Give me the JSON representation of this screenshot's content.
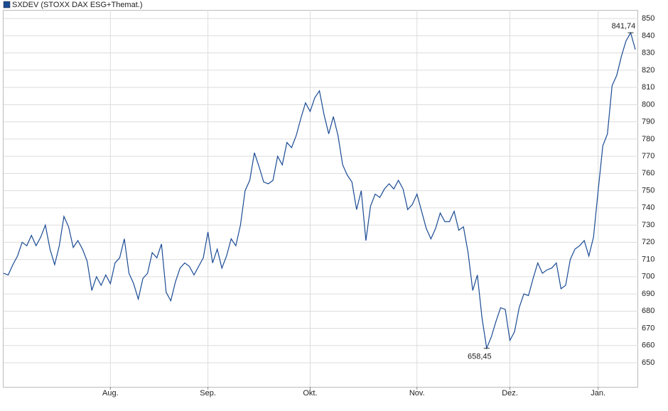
{
  "chart_data": {
    "type": "line",
    "categories": [
      null,
      null,
      null,
      null,
      null,
      null,
      null,
      null,
      null,
      null,
      null,
      null,
      null,
      null,
      null,
      null,
      null,
      null,
      null,
      null,
      null,
      null,
      null,
      "Aug.",
      null,
      null,
      null,
      null,
      null,
      null,
      null,
      null,
      null,
      null,
      null,
      null,
      null,
      null,
      null,
      null,
      null,
      null,
      null,
      null,
      "Sep.",
      null,
      null,
      null,
      null,
      null,
      null,
      null,
      null,
      null,
      null,
      null,
      null,
      null,
      null,
      null,
      null,
      null,
      null,
      null,
      null,
      null,
      "Okt.",
      null,
      null,
      null,
      null,
      null,
      null,
      null,
      null,
      null,
      null,
      null,
      null,
      null,
      null,
      null,
      null,
      null,
      null,
      null,
      null,
      null,
      null,
      "Nov.",
      null,
      null,
      null,
      null,
      null,
      null,
      null,
      null,
      null,
      null,
      null,
      null,
      null,
      null,
      null,
      null,
      null,
      null,
      null,
      "Dez.",
      null,
      null,
      null,
      null,
      null,
      null,
      null,
      null,
      null,
      null,
      null,
      null,
      null,
      null,
      null,
      null,
      null,
      null,
      "Jan.",
      null,
      null,
      null,
      null,
      null,
      null,
      null,
      null
    ],
    "series": [
      {
        "name": "SXDEV (STOXX DAX ESG+Themat.)",
        "color": "#1a4b94",
        "values": [
          702,
          701,
          707,
          712,
          720,
          718,
          724,
          718,
          723,
          730,
          716,
          707,
          718,
          735,
          729,
          717,
          721,
          716,
          709,
          692,
          700,
          695,
          701,
          696,
          708,
          711,
          722,
          702,
          696,
          687,
          699,
          702,
          714,
          711,
          719,
          691,
          686,
          697,
          705,
          708,
          706,
          701,
          706,
          711,
          726,
          708,
          716,
          705,
          712,
          722,
          718,
          730,
          750,
          756,
          772,
          764,
          755,
          754,
          756,
          770,
          765,
          778,
          775,
          782,
          792,
          801,
          796,
          804,
          808,
          794,
          783,
          793,
          782,
          765,
          759,
          755,
          739,
          750,
          721,
          741,
          748,
          746,
          751,
          754,
          751,
          756,
          751,
          739,
          742,
          748,
          738,
          728,
          722,
          728,
          737,
          732,
          732,
          738,
          727,
          729,
          714,
          692,
          701,
          676,
          658.45,
          665,
          674,
          682,
          681,
          663,
          668,
          682,
          690,
          689,
          699,
          708,
          702,
          704,
          705,
          708,
          693,
          695,
          710,
          716,
          718,
          721,
          712,
          723,
          750,
          776,
          783,
          811,
          817,
          828,
          837,
          841.74,
          832
        ],
        "value_labels": [
          null,
          null,
          null,
          null,
          null,
          null,
          null,
          null,
          null,
          null,
          null,
          null,
          null,
          null,
          null,
          null,
          null,
          null,
          null,
          null,
          null,
          null,
          null,
          null,
          null,
          null,
          null,
          null,
          null,
          null,
          null,
          null,
          null,
          null,
          null,
          null,
          null,
          null,
          null,
          null,
          null,
          null,
          null,
          null,
          null,
          null,
          null,
          null,
          null,
          null,
          null,
          null,
          null,
          null,
          null,
          null,
          null,
          null,
          null,
          null,
          null,
          null,
          null,
          null,
          null,
          null,
          null,
          null,
          null,
          null,
          null,
          null,
          null,
          null,
          null,
          null,
          null,
          null,
          null,
          null,
          null,
          null,
          null,
          null,
          null,
          null,
          null,
          null,
          null,
          null,
          null,
          null,
          null,
          null,
          null,
          null,
          null,
          null,
          null,
          null,
          null,
          null,
          null,
          null,
          "658,45",
          null,
          null,
          null,
          null,
          null,
          null,
          null,
          null,
          null,
          null,
          null,
          null,
          null,
          null,
          null,
          null,
          null,
          null,
          null,
          null,
          null,
          null,
          null,
          null,
          null,
          null,
          null,
          null,
          null,
          null,
          "841,74",
          null
        ]
      }
    ],
    "ylim": [
      636,
      855
    ],
    "yticks": [
      650,
      660,
      670,
      680,
      690,
      700,
      710,
      720,
      730,
      740,
      750,
      760,
      770,
      780,
      790,
      800,
      810,
      820,
      830,
      840,
      850
    ],
    "grid": true
  }
}
